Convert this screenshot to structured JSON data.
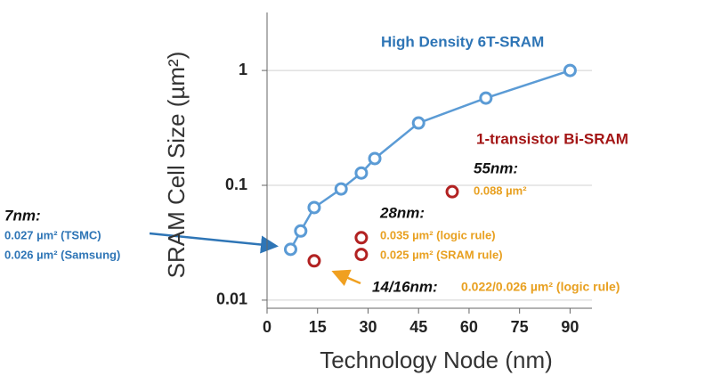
{
  "chart_data": {
    "type": "scatter",
    "x_label": "Technology Node (nm)",
    "y_label": "SRAM Cell Size (µm²)",
    "xlim": [
      0,
      96.5
    ],
    "xticks": [
      0,
      15,
      30,
      45,
      60,
      75,
      90
    ],
    "ylim": [
      0.0085,
      3.2
    ],
    "yticks": [
      0.01,
      0.1,
      1
    ],
    "y_scale": "log",
    "grid": true,
    "series": [
      {
        "name": "High Density 6T-SRAM",
        "color": "#5b9bd5",
        "mode": "lines+markers",
        "x": [
          7,
          10,
          14,
          22,
          28,
          32,
          45,
          65,
          90
        ],
        "values": [
          0.0277,
          0.04,
          0.064,
          0.093,
          0.128,
          0.171,
          0.349,
          0.575,
          1
        ]
      },
      {
        "name": "1-transistor Bi-SRAM",
        "color": "#b22222",
        "mode": "markers",
        "x": [
          14,
          28,
          28,
          55
        ],
        "values": [
          0.022,
          0.035,
          0.025,
          0.088
        ]
      }
    ],
    "annotations": [
      "55nm:",
      "0.088 µm²",
      "28nm:",
      "0.035 µm² (logic rule)",
      "0.025 µm² (SRAM rule)",
      "14/16nm:",
      "0.022/0.026 µm² (logic rule)",
      "7nm:",
      "0.027 µm² (TSMC)",
      "0.026 µm² (Samsung)"
    ]
  }
}
